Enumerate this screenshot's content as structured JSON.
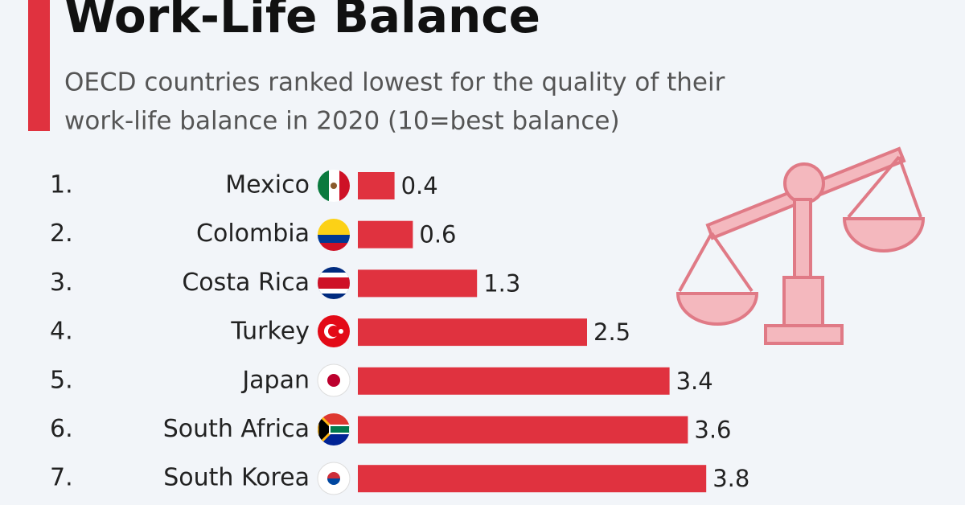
{
  "chart_data": {
    "type": "bar",
    "orientation": "horizontal",
    "title": "Work-Life Balance",
    "subtitle": [
      "OECD countries ranked lowest for the quality of their",
      "work-life balance in 2020 (10=best balance)"
    ],
    "ranks": [
      "1.",
      "2.",
      "3.",
      "4.",
      "5.",
      "6.",
      "7."
    ],
    "categories": [
      "Mexico",
      "Colombia",
      "Costa Rica",
      "Turkey",
      "Japan",
      "South Africa",
      "South Korea"
    ],
    "values": [
      0.4,
      0.6,
      1.3,
      2.5,
      3.4,
      3.6,
      3.8
    ],
    "color": "#e0323f"
  }
}
